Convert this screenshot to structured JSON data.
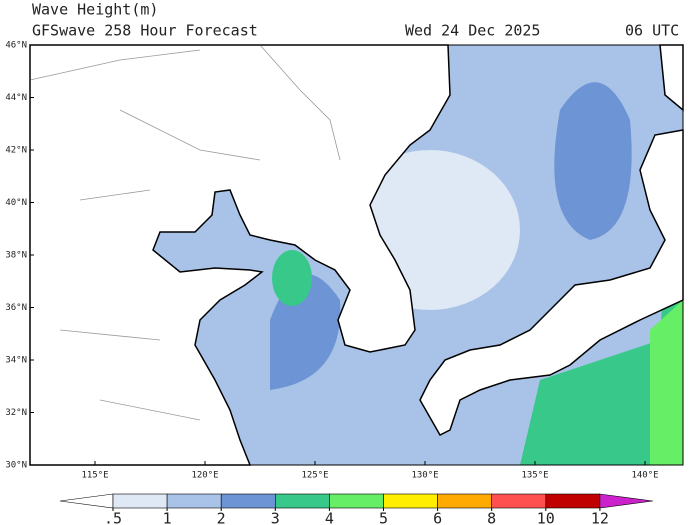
{
  "header": {
    "title": "Wave Height(m)",
    "model": "GFSwave 258 Hour Forecast",
    "date": "Wed 24 Dec 2025",
    "time": "06 UTC"
  },
  "map": {
    "lat_labels": [
      "46°N",
      "44°N",
      "42°N",
      "40°N",
      "38°N",
      "36°N",
      "34°N",
      "32°N",
      "30°N"
    ],
    "lon_labels": [
      "115°E",
      "120°E",
      "125°E",
      "130°E",
      "135°E",
      "140°E"
    ]
  },
  "colorbar": {
    "levels": [
      {
        "value": 0.5,
        "label": ".5"
      },
      1,
      2,
      3,
      4,
      5,
      6,
      8,
      10,
      12
    ],
    "colors": [
      "#ffffff",
      "#dfe8f5",
      "#a9c3e8",
      "#6d94d4",
      "#38c98a",
      "#66ee66",
      "#ffee00",
      "#ffaa00",
      "#ff5050",
      "#c00000",
      "#cc22cc"
    ]
  }
}
